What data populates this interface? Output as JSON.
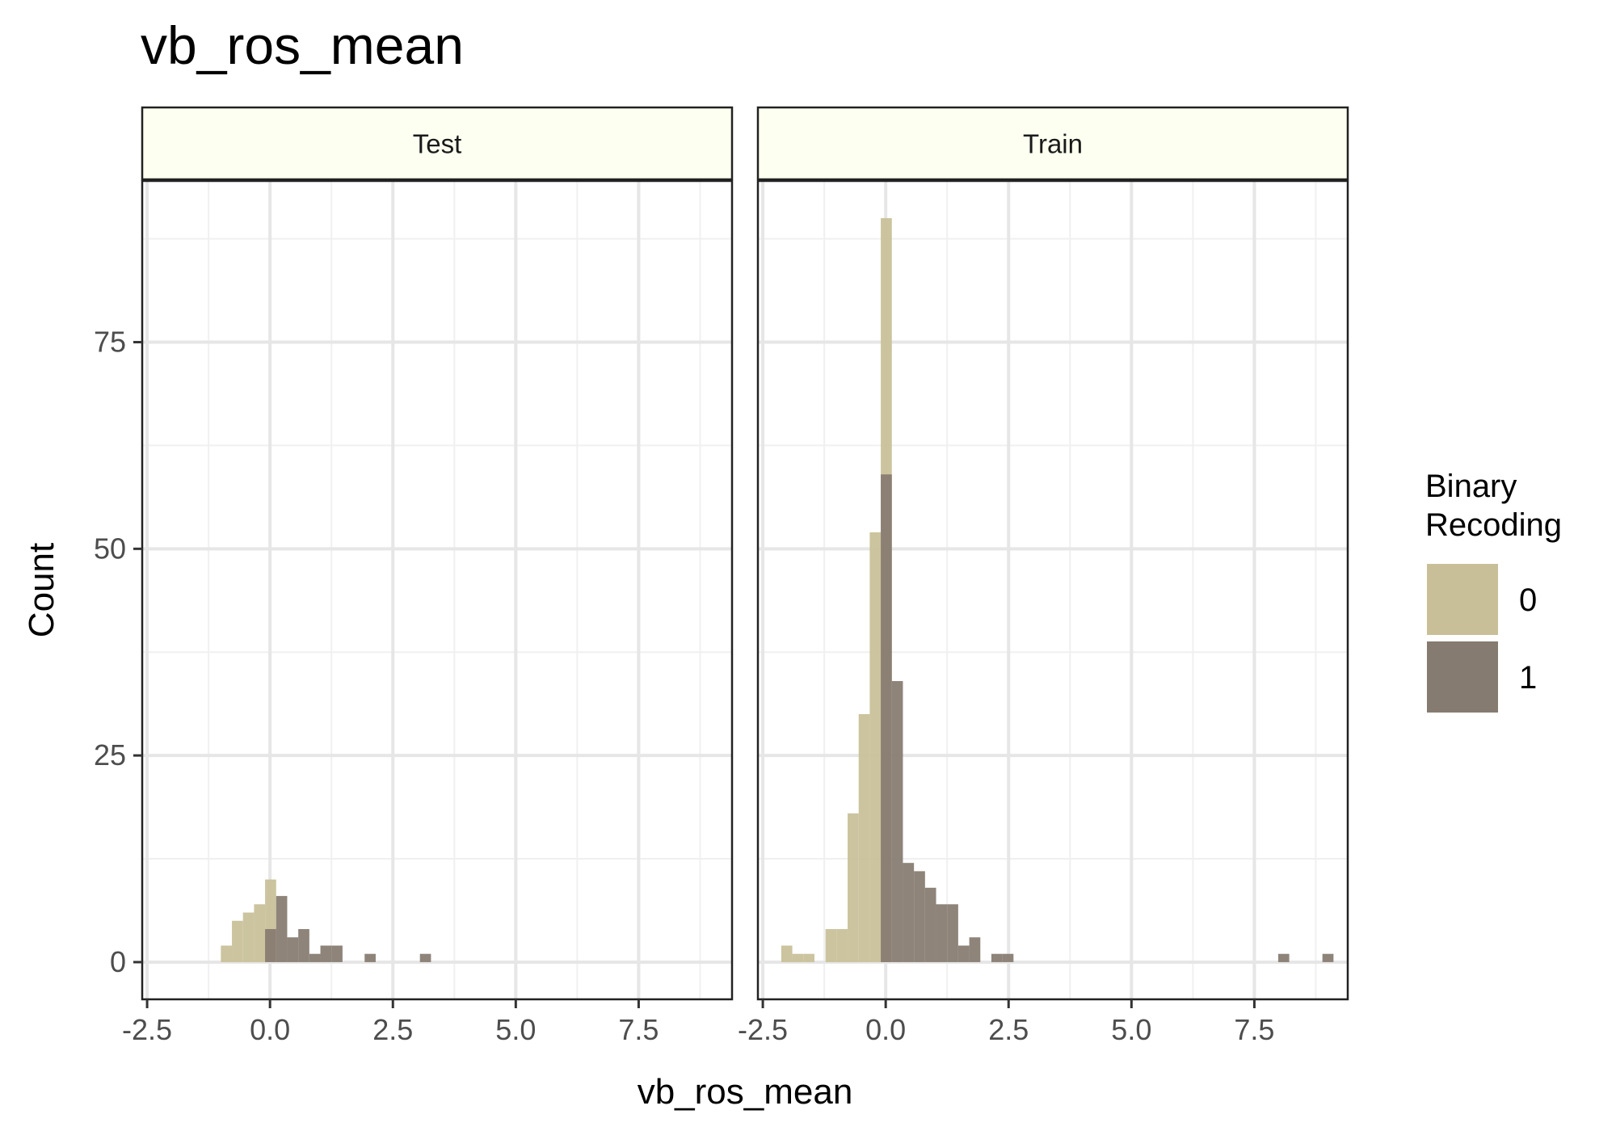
{
  "chart_data": {
    "type": "bar",
    "title": "vb_ros_mean",
    "xlabel": "vb_ros_mean",
    "ylabel": "Count",
    "xlim": [
      -2.6,
      9.4
    ],
    "ylim": [
      -4.5,
      94.5
    ],
    "x_ticks": [
      -2.5,
      0.0,
      2.5,
      5.0,
      7.5
    ],
    "x_tick_labels": [
      "-2.5",
      "0.0",
      "2.5",
      "5.0",
      "7.5"
    ],
    "y_ticks": [
      0,
      25,
      50,
      75
    ],
    "y_tick_labels": [
      "0",
      "25",
      "50",
      "75"
    ],
    "bin_width": 0.225,
    "grid": true,
    "legend": {
      "title_lines": [
        "Binary",
        "Recoding"
      ],
      "position": "right",
      "items": [
        {
          "label": "0",
          "color": "#c8bf98"
        },
        {
          "label": "1",
          "color": "#857b70"
        }
      ]
    },
    "panels": [
      {
        "label": "Test",
        "series": [
          {
            "name": "0",
            "color": "#c8bf98",
            "bins": [
              {
                "x0": -1.0,
                "count": 2
              },
              {
                "x0": -0.775,
                "count": 5
              },
              {
                "x0": -0.55,
                "count": 6
              },
              {
                "x0": -0.325,
                "count": 7
              },
              {
                "x0": -0.1,
                "count": 10
              }
            ]
          },
          {
            "name": "1",
            "color": "#857b70",
            "bins": [
              {
                "x0": -0.1,
                "count": 4
              },
              {
                "x0": 0.125,
                "count": 8
              },
              {
                "x0": 0.35,
                "count": 3
              },
              {
                "x0": 0.575,
                "count": 4
              },
              {
                "x0": 0.8,
                "count": 1
              },
              {
                "x0": 1.025,
                "count": 2
              },
              {
                "x0": 1.25,
                "count": 2
              },
              {
                "x0": 1.925,
                "count": 1
              },
              {
                "x0": 3.05,
                "count": 1
              }
            ]
          }
        ]
      },
      {
        "label": "Train",
        "series": [
          {
            "name": "0",
            "color": "#c8bf98",
            "bins": [
              {
                "x0": -2.125,
                "count": 2
              },
              {
                "x0": -1.9,
                "count": 1
              },
              {
                "x0": -1.675,
                "count": 1
              },
              {
                "x0": -1.225,
                "count": 4
              },
              {
                "x0": -1.0,
                "count": 4
              },
              {
                "x0": -0.775,
                "count": 18
              },
              {
                "x0": -0.55,
                "count": 30
              },
              {
                "x0": -0.325,
                "count": 52
              },
              {
                "x0": -0.1,
                "count": 90
              }
            ]
          },
          {
            "name": "1",
            "color": "#857b70",
            "bins": [
              {
                "x0": -0.1,
                "count": 59
              },
              {
                "x0": 0.125,
                "count": 34
              },
              {
                "x0": 0.35,
                "count": 12
              },
              {
                "x0": 0.575,
                "count": 11
              },
              {
                "x0": 0.8,
                "count": 9
              },
              {
                "x0": 1.025,
                "count": 7
              },
              {
                "x0": 1.25,
                "count": 7
              },
              {
                "x0": 1.475,
                "count": 2
              },
              {
                "x0": 1.7,
                "count": 3
              },
              {
                "x0": 2.15,
                "count": 1
              },
              {
                "x0": 2.375,
                "count": 1
              },
              {
                "x0": 7.985,
                "count": 1
              },
              {
                "x0": 8.885,
                "count": 1
              }
            ]
          }
        ]
      }
    ]
  }
}
